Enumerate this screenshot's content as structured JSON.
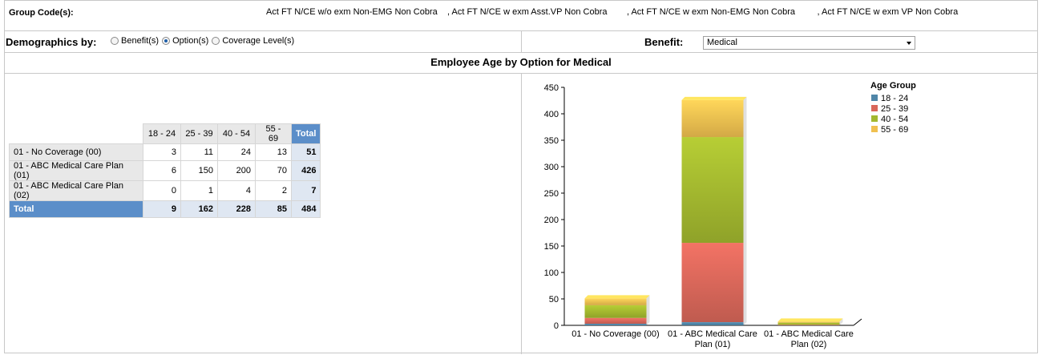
{
  "group_codes": {
    "label": "Group Code(s):",
    "values": [
      "Act FT N/CE w/o exm Non-EMG Non Cobra",
      ", Act FT N/CE w exm Asst.VP Non Cobra",
      ", Act FT N/CE w exm Non-EMG Non Cobra",
      ", Act FT N/CE w exm VP Non Cobra"
    ]
  },
  "demographics": {
    "label": "Demographics by:",
    "options": [
      {
        "label": "Benefit(s)",
        "checked": false
      },
      {
        "label": "Option(s)",
        "checked": true
      },
      {
        "label": "Coverage Level(s)",
        "checked": false
      }
    ]
  },
  "benefit": {
    "label": "Benefit:",
    "selected": "Medical"
  },
  "section_title": "Employee Age by Option for  Medical",
  "table": {
    "columns": [
      "18 - 24",
      "25 - 39",
      "40 - 54",
      "55 - 69",
      "Total"
    ],
    "rows": [
      {
        "label": "01 - No Coverage (00)",
        "values": [
          "3",
          "11",
          "24",
          "13",
          "51"
        ]
      },
      {
        "label": "01 - ABC Medical Care Plan (01)",
        "values": [
          "6",
          "150",
          "200",
          "70",
          "426"
        ]
      },
      {
        "label": "01 - ABC Medical Care Plan (02)",
        "values": [
          "0",
          "1",
          "4",
          "2",
          "7"
        ]
      }
    ],
    "total": {
      "label": "Total",
      "values": [
        "9",
        "162",
        "228",
        "85",
        "484"
      ]
    }
  },
  "chart_data": {
    "type": "bar",
    "stacked": true,
    "categories": [
      "01 - No Coverage (00)",
      "01 - ABC Medical Care Plan (01)",
      "01 - ABC Medical Care Plan (02)"
    ],
    "category_lines": [
      [
        "01 - No Coverage (00)"
      ],
      [
        "01 - ABC Medical Care",
        "Plan (01)"
      ],
      [
        "01 - ABC Medical Care",
        "Plan (02)"
      ]
    ],
    "series": [
      {
        "name": "18 - 24",
        "values": [
          3,
          6,
          0
        ],
        "color": "#4f86a8"
      },
      {
        "name": "25 - 39",
        "values": [
          11,
          150,
          1
        ],
        "color": "#d9675a"
      },
      {
        "name": "40 - 54",
        "values": [
          24,
          200,
          4
        ],
        "color": "#a3b82f"
      },
      {
        "name": "55 - 69",
        "values": [
          13,
          70,
          2
        ],
        "color": "#f0c050"
      }
    ],
    "ylim": [
      0,
      450
    ],
    "yticks": [
      "0",
      "50",
      "100",
      "150",
      "200",
      "250",
      "300",
      "350",
      "400",
      "450"
    ],
    "legend_title": "Age Group",
    "legend_position": "top-right"
  }
}
